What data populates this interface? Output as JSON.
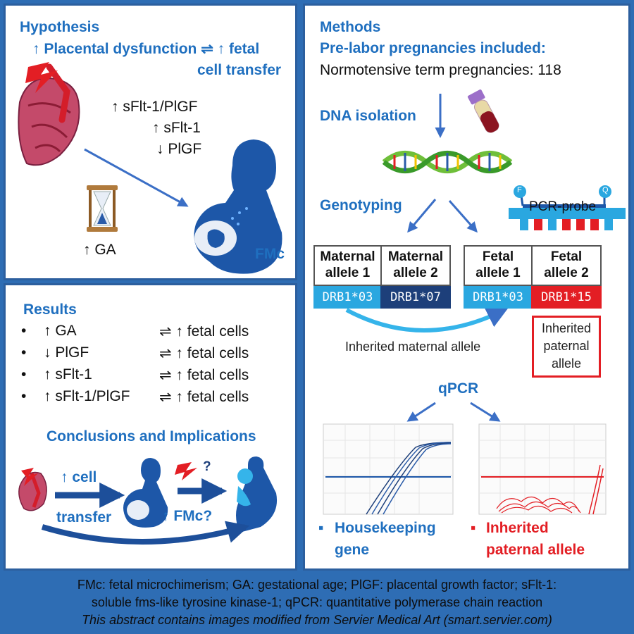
{
  "colors": {
    "accent_blue": "#1f6fbf",
    "dark_blue": "#1d3f7a",
    "light_blue": "#2aa7e0",
    "red": "#e31e24",
    "background": "#2e6db4"
  },
  "hypothesis": {
    "title": "Hypothesis",
    "line1": "↑ Placental dysfunction ⇌ ↑ fetal",
    "line2": "cell transfer",
    "markers": [
      "↑ sFlt-1/PlGF",
      "↑ sFlt-1",
      "↓ PlGF"
    ],
    "ga_label": "↑ GA",
    "fmc_label": "FMc",
    "icons": [
      "placenta-icon",
      "lightning-icon",
      "hourglass-icon",
      "pregnant-woman-icon"
    ]
  },
  "results": {
    "title": "Results",
    "items": [
      {
        "left": "↑ GA",
        "right": "⇌ ↑ fetal cells"
      },
      {
        "left": "↓ PlGF",
        "right": "⇌ ↑ fetal cells"
      },
      {
        "left": "↑ sFlt-1",
        "right": "⇌ ↑ fetal cells"
      },
      {
        "left": "↑ sFlt-1/PlGF",
        "right": "⇌ ↑ fetal cells"
      }
    ]
  },
  "conclusions": {
    "title": "Conclusions and Implications",
    "cell_label": "↑ cell",
    "transfer_label": "transfer",
    "fmc_question": "↑ FMc?",
    "question_mark": "?"
  },
  "methods": {
    "title": "Methods",
    "included_title": "Pre-labor pregnancies included:",
    "included_text": "Normotensive term pregnancies: 118",
    "dna_isolation": "DNA isolation",
    "genotyping": "Genotyping",
    "pcr_probe": "PCR-probe",
    "probe_f": "F",
    "probe_q": "Q",
    "alleles": [
      {
        "head1": "Maternal",
        "head2": "allele 1",
        "value": "DRB1*03",
        "color": "#2aa7e0"
      },
      {
        "head1": "Maternal",
        "head2": "allele 2",
        "value": "DRB1*07",
        "color": "#1d3f7a"
      },
      {
        "head1": "Fetal",
        "head2": "allele 1",
        "value": "DRB1*03",
        "color": "#2aa7e0"
      },
      {
        "head1": "Fetal",
        "head2": "allele 2",
        "value": "DRB1*15",
        "color": "#e31e24"
      }
    ],
    "inherited_maternal": "Inherited maternal allele",
    "inherited_paternal": [
      "Inherited",
      "paternal",
      "allele"
    ],
    "qpcr": "qPCR",
    "housekeeping": [
      "Housekeeping",
      "gene"
    ],
    "paternal_allele": [
      "Inherited",
      "paternal allele"
    ]
  },
  "footer": {
    "line1": "FMc: fetal microchimerism; GA: gestational age; PlGF: placental growth factor; sFlt-1:",
    "line2": "soluble fms-like tyrosine kinase-1; qPCR: quantitative polymerase chain reaction",
    "line3": "This abstract contains  images modified from Servier Medical Art (smart.servier.com)"
  }
}
